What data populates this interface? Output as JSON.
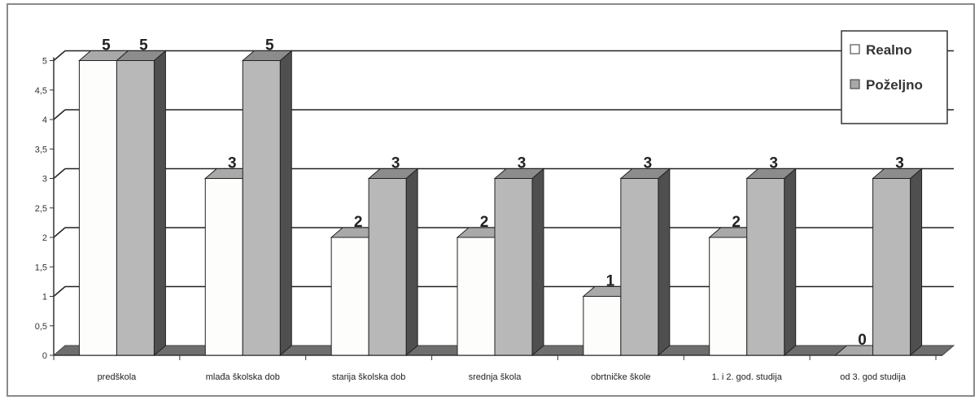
{
  "chart_data": {
    "type": "bar",
    "categories": [
      "predškola",
      "mlađa školska dob",
      "starija školska dob",
      "srednja škola",
      "obrtničke škole",
      "1. i 2. god. studija",
      "od 3. god studija"
    ],
    "series": [
      {
        "name": "Realno",
        "values": [
          5,
          3,
          2,
          2,
          1,
          2,
          0
        ],
        "color": "#fdfdfb"
      },
      {
        "name": "Poželjno",
        "values": [
          5,
          5,
          3,
          3,
          3,
          3,
          3
        ],
        "color": "#b8b8b8"
      }
    ],
    "y_ticks": [
      "0",
      "0,5",
      "1",
      "1,5",
      "2",
      "2,5",
      "3",
      "3,5",
      "4",
      "4,5",
      "5"
    ],
    "ylim": [
      0,
      5
    ],
    "grid": true,
    "legend_position": "top-right",
    "style": "3d-bar"
  }
}
